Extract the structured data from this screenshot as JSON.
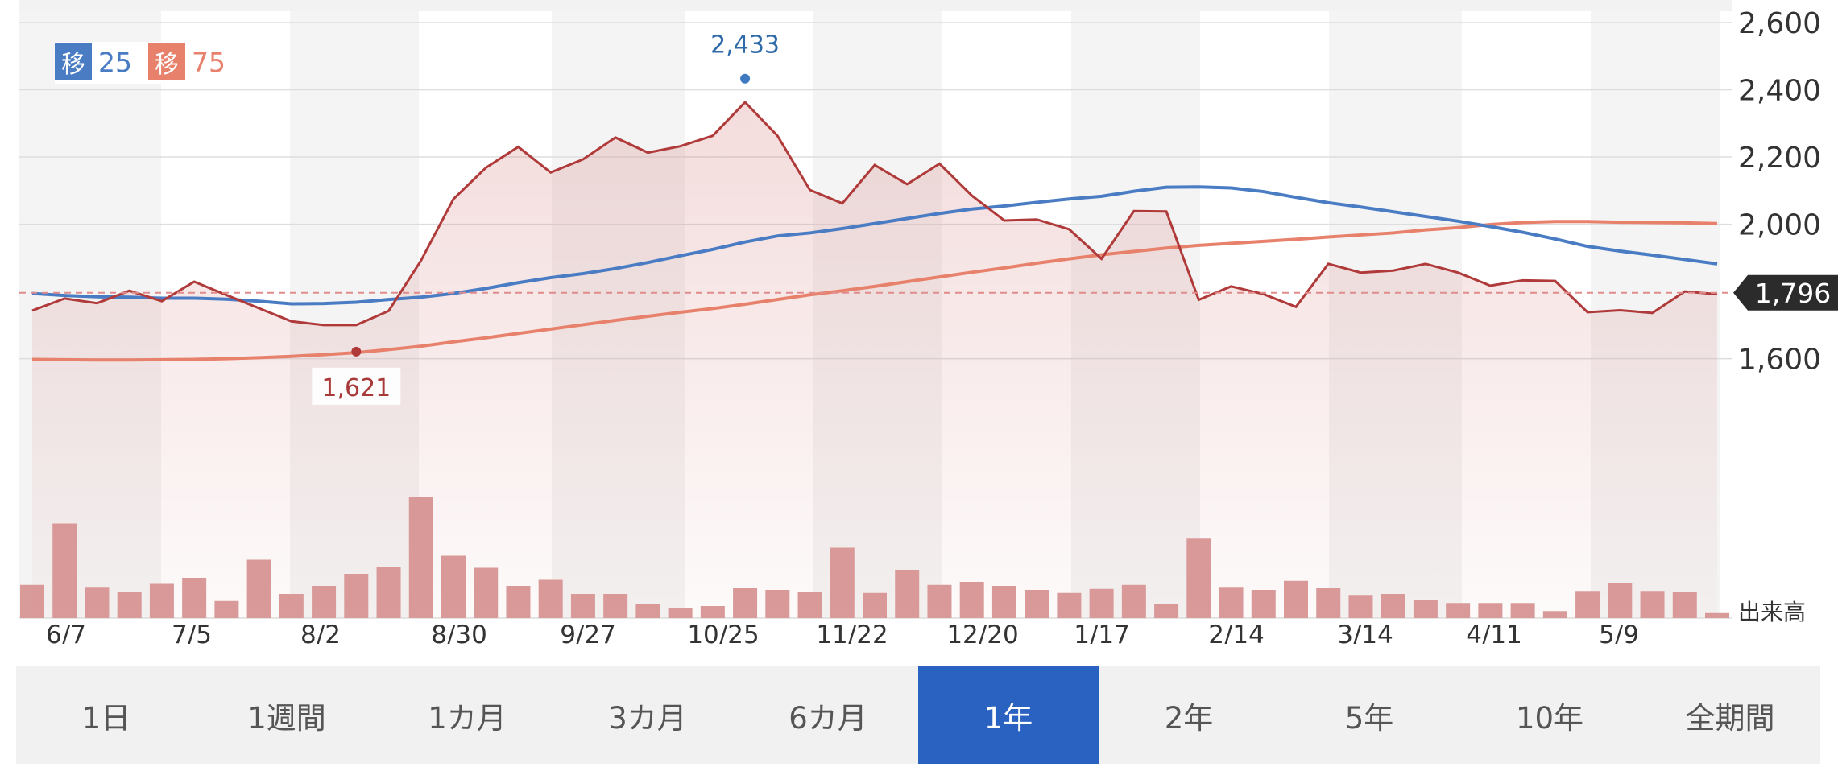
{
  "chart_data": {
    "type": "line",
    "x_labels": [
      "6/7",
      "7/5",
      "8/2",
      "8/30",
      "9/27",
      "10/25",
      "11/22",
      "12/20",
      "1/17",
      "2/14",
      "3/14",
      "4/11",
      "5/9"
    ],
    "y_ticks": [
      "2,600",
      "2,400",
      "2,200",
      "2,000",
      "1,600"
    ],
    "ylim": [
      1500,
      2600
    ],
    "volume_label": "出来高",
    "grid": true,
    "legend_placement": "top-left",
    "legend": [
      {
        "badge": "移",
        "period": "25",
        "color": "#4a7cc4"
      },
      {
        "badge": "移",
        "period": "75",
        "color": "#e8816c"
      }
    ],
    "price": {
      "color": "#b03a3a",
      "values": [
        1743,
        1779,
        1765,
        1802,
        1771,
        1829,
        1789,
        1750,
        1711,
        1700,
        1700,
        1742,
        1892,
        2075,
        2168,
        2230,
        2154,
        2193,
        2258,
        2213,
        2232,
        2263,
        2363,
        2263,
        2102,
        2062,
        2176,
        2119,
        2180,
        2085,
        2011,
        2014,
        1985,
        1897,
        2039,
        2038,
        1775,
        1815,
        1792,
        1754,
        1882,
        1856,
        1862,
        1882,
        1856,
        1817,
        1833,
        1831,
        1738,
        1744,
        1736,
        1800,
        1792
      ]
    },
    "ma25": {
      "color": "#4a7cc4",
      "values": [
        1794,
        1788,
        1784,
        1783,
        1780,
        1780,
        1777,
        1771,
        1763,
        1764,
        1768,
        1776,
        1783,
        1794,
        1809,
        1826,
        1841,
        1853,
        1868,
        1886,
        1906,
        1925,
        1947,
        1965,
        1974,
        1987,
        2002,
        2017,
        2032,
        2045,
        2054,
        2065,
        2075,
        2083,
        2098,
        2110,
        2111,
        2108,
        2097,
        2080,
        2064,
        2051,
        2037,
        2023,
        2009,
        1993,
        1976,
        1956,
        1934,
        1920,
        1908,
        1895,
        1882
      ]
    },
    "ma75": {
      "color": "#e8816c",
      "values": [
        1598,
        1597,
        1596,
        1596,
        1597,
        1598,
        1600,
        1603,
        1607,
        1612,
        1618,
        1627,
        1637,
        1650,
        1662,
        1675,
        1688,
        1701,
        1714,
        1726,
        1738,
        1749,
        1762,
        1776,
        1790,
        1802,
        1815,
        1829,
        1843,
        1857,
        1870,
        1884,
        1897,
        1909,
        1919,
        1929,
        1937,
        1943,
        1949,
        1955,
        1962,
        1968,
        1974,
        1983,
        1990,
        1999,
        2005,
        2008,
        2008,
        2006,
        2005,
        2004,
        2002
      ]
    },
    "volume": [
      33,
      94,
      31,
      26,
      34,
      40,
      17,
      58,
      24,
      32,
      44,
      51,
      120,
      62,
      50,
      32,
      38,
      24,
      24,
      14,
      10,
      12,
      30,
      28,
      26,
      70,
      25,
      48,
      33,
      36,
      32,
      28,
      25,
      29,
      33,
      14,
      79,
      31,
      28,
      37,
      30,
      23,
      24,
      18,
      15,
      15,
      15,
      7,
      27,
      35,
      27,
      26,
      5
    ],
    "current": {
      "value": "1,796",
      "y": 1796
    },
    "high": {
      "value": "2,433",
      "y": 2433
    },
    "low": {
      "value": "1,621",
      "y": 1621
    }
  },
  "periods": [
    {
      "label": "1日",
      "active": false
    },
    {
      "label": "1週間",
      "active": false
    },
    {
      "label": "1カ月",
      "active": false
    },
    {
      "label": "3カ月",
      "active": false
    },
    {
      "label": "6カ月",
      "active": false
    },
    {
      "label": "1年",
      "active": true
    },
    {
      "label": "2年",
      "active": false
    },
    {
      "label": "5年",
      "active": false
    },
    {
      "label": "10年",
      "active": false
    },
    {
      "label": "全期間",
      "active": false
    }
  ]
}
